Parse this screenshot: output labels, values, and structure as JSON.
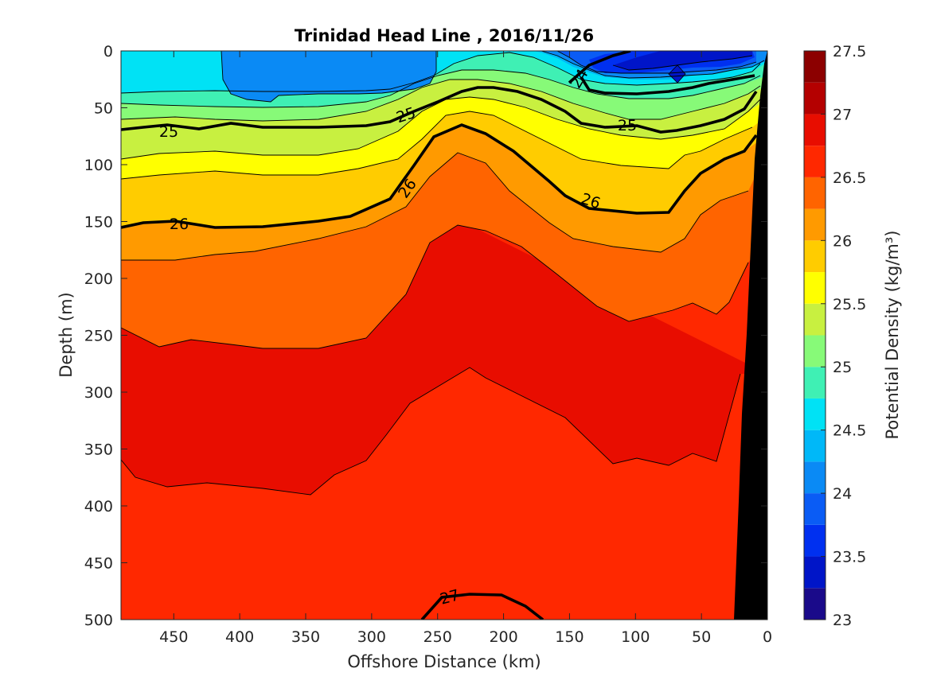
{
  "chart_data": {
    "type": "filled-contour",
    "title": "Trinidad Head Line , 2016/11/26",
    "xlabel": "Offshore Distance (km)",
    "ylabel": "Depth (m)",
    "colorbar_label": "Potential Density (kg/m³)",
    "x_axis": {
      "range": [
        490,
        0
      ],
      "reversed": true,
      "ticks": [
        450,
        400,
        350,
        300,
        250,
        200,
        150,
        100,
        50,
        0
      ]
    },
    "y_axis": {
      "range": [
        0,
        500
      ],
      "reversed": true,
      "ticks": [
        0,
        50,
        100,
        150,
        200,
        250,
        300,
        350,
        400,
        450,
        500
      ]
    },
    "colorbar": {
      "range": [
        23,
        27.5
      ],
      "step": 0.25,
      "ticks": [
        "23",
        "23.5",
        "24",
        "24.5",
        "25",
        "25.5",
        "26",
        "26.5",
        "27",
        "27.5"
      ],
      "colors": [
        "#1a0a8a",
        "#0015c8",
        "#0030f0",
        "#0a5cf5",
        "#0a8af5",
        "#00b8f8",
        "#00e2f5",
        "#3ff0b4",
        "#87fa78",
        "#c8f040",
        "#ffff00",
        "#ffcc00",
        "#ff9a00",
        "#ff6400",
        "#ff2800",
        "#e80d00",
        "#b40000",
        "#8c0000"
      ]
    },
    "contour_labels": [
      "24",
      "25",
      "25",
      "25",
      "26",
      "26",
      "26",
      "27"
    ],
    "bathymetry_color": "#000000"
  }
}
